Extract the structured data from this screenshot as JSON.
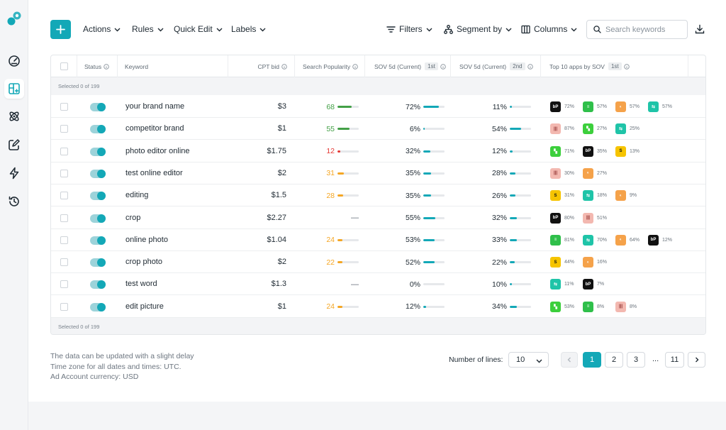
{
  "colors": {
    "accent": "#13a8b7",
    "green": "#43a047",
    "red": "#e53935",
    "orange": "#f5a623",
    "bar_teal": "#13a8b7"
  },
  "sidebar": {
    "items": [
      {
        "icon": "dashboard-gauge-icon"
      },
      {
        "icon": "add-table-icon",
        "active": true
      },
      {
        "icon": "atom-icon"
      },
      {
        "icon": "edit-square-icon"
      },
      {
        "icon": "lightning-icon"
      },
      {
        "icon": "history-icon"
      }
    ]
  },
  "toolbar": {
    "add_icon": "plus-icon",
    "actions_label": "Actions",
    "rules_label": "Rules",
    "quick_edit_label": "Quick Edit",
    "labels_label": "Labels",
    "filters_label": "Filters",
    "segment_label": "Segment by",
    "columns_label": "Columns",
    "search_placeholder": "Search keywords",
    "download_icon": "download-icon"
  },
  "table": {
    "headers": {
      "status": "Status",
      "keyword": "Keyword",
      "cpt_bid": "CPT bid",
      "popularity": "Search Popularity",
      "sov1": "SOV 5d (Current)",
      "sov1_tag": "1st",
      "sov2": "SOV 5d (Current)",
      "sov2_tag": "2nd",
      "top_apps": "Top 10 apps by SOV",
      "top_apps_tag": "1st"
    },
    "selected_text": "Selected 0 of 199",
    "rows": [
      {
        "keyword": "your brand name",
        "bid": "$3",
        "pop": "68",
        "pop_value": 68,
        "pop_color": "green",
        "sov1": "72%",
        "sov1_value": 72,
        "sov2": "11%",
        "sov2_value": 11,
        "apps": [
          {
            "app": "bp",
            "pct": "72%"
          },
          {
            "app": "green",
            "pct": "57%"
          },
          {
            "app": "orange",
            "pct": "57%"
          },
          {
            "app": "teal",
            "pct": "57%"
          }
        ]
      },
      {
        "keyword": "competitor brand",
        "bid": "$1",
        "pop": "55",
        "pop_value": 55,
        "pop_color": "green",
        "sov1": "6%",
        "sov1_value": 6,
        "sov2": "54%",
        "sov2_value": 54,
        "apps": [
          {
            "app": "pink",
            "pct": "87%"
          },
          {
            "app": "bright",
            "pct": "27%"
          },
          {
            "app": "teal",
            "pct": "25%"
          }
        ]
      },
      {
        "keyword": "photo editor online",
        "bid": "$1.75",
        "pop": "12",
        "pop_value": 12,
        "pop_color": "red",
        "sov1": "32%",
        "sov1_value": 32,
        "sov2": "12%",
        "sov2_value": 12,
        "apps": [
          {
            "app": "bright",
            "pct": "71%"
          },
          {
            "app": "bp",
            "pct": "35%"
          },
          {
            "app": "yellow",
            "pct": "13%"
          }
        ]
      },
      {
        "keyword": "test online editor",
        "bid": "$2",
        "pop": "31",
        "pop_value": 31,
        "pop_color": "orange",
        "sov1": "35%",
        "sov1_value": 35,
        "sov2": "28%",
        "sov2_value": 28,
        "apps": [
          {
            "app": "pink",
            "pct": "30%"
          },
          {
            "app": "orange",
            "pct": "27%"
          }
        ]
      },
      {
        "keyword": "editing",
        "bid": "$1.5",
        "pop": "28",
        "pop_value": 28,
        "pop_color": "orange",
        "sov1": "35%",
        "sov1_value": 35,
        "sov2": "26%",
        "sov2_value": 26,
        "apps": [
          {
            "app": "yellow",
            "pct": "31%"
          },
          {
            "app": "teal",
            "pct": "18%"
          },
          {
            "app": "orange",
            "pct": "9%"
          }
        ]
      },
      {
        "keyword": "crop",
        "bid": "$2.27",
        "pop": "—",
        "pop_value": null,
        "pop_color": "none",
        "sov1": "55%",
        "sov1_value": 55,
        "sov2": "32%",
        "sov2_value": 32,
        "apps": [
          {
            "app": "bp",
            "pct": "80%"
          },
          {
            "app": "pink",
            "pct": "51%"
          }
        ]
      },
      {
        "keyword": "online photo",
        "bid": "$1.04",
        "pop": "24",
        "pop_value": 24,
        "pop_color": "orange",
        "sov1": "53%",
        "sov1_value": 53,
        "sov2": "33%",
        "sov2_value": 33,
        "apps": [
          {
            "app": "green",
            "pct": "81%"
          },
          {
            "app": "teal",
            "pct": "70%"
          },
          {
            "app": "orange",
            "pct": "64%"
          },
          {
            "app": "bp",
            "pct": "12%"
          }
        ]
      },
      {
        "keyword": "crop photo",
        "bid": "$2",
        "pop": "22",
        "pop_value": 22,
        "pop_color": "orange",
        "sov1": "52%",
        "sov1_value": 52,
        "sov2": "22%",
        "sov2_value": 22,
        "apps": [
          {
            "app": "yellow",
            "pct": "44%"
          },
          {
            "app": "orange",
            "pct": "16%"
          }
        ]
      },
      {
        "keyword": "test word",
        "bid": "$1.3",
        "pop": "—",
        "pop_value": null,
        "pop_color": "none",
        "sov1": "0%",
        "sov1_value": 0,
        "sov2": "10%",
        "sov2_value": 10,
        "apps": [
          {
            "app": "teal",
            "pct": "11%"
          },
          {
            "app": "bp",
            "pct": "7%"
          }
        ]
      },
      {
        "keyword": "edit picture",
        "bid": "$1",
        "pop": "24",
        "pop_value": 24,
        "pop_color": "orange",
        "sov1": "12%",
        "sov1_value": 12,
        "sov2": "34%",
        "sov2_value": 34,
        "apps": [
          {
            "app": "bright",
            "pct": "53%"
          },
          {
            "app": "green",
            "pct": "8%"
          },
          {
            "app": "pink",
            "pct": "8%"
          }
        ]
      }
    ]
  },
  "footer": {
    "note_1": "The data can be updated with a slight delay",
    "note_2": "Time zone for all dates and times: UTC.",
    "note_3": "Ad Account currency: USD",
    "lines_label": "Number of lines:",
    "lines_value": "10",
    "pages": [
      "1",
      "2",
      "3",
      "11"
    ],
    "ellipsis": "...",
    "current_page": "1"
  }
}
